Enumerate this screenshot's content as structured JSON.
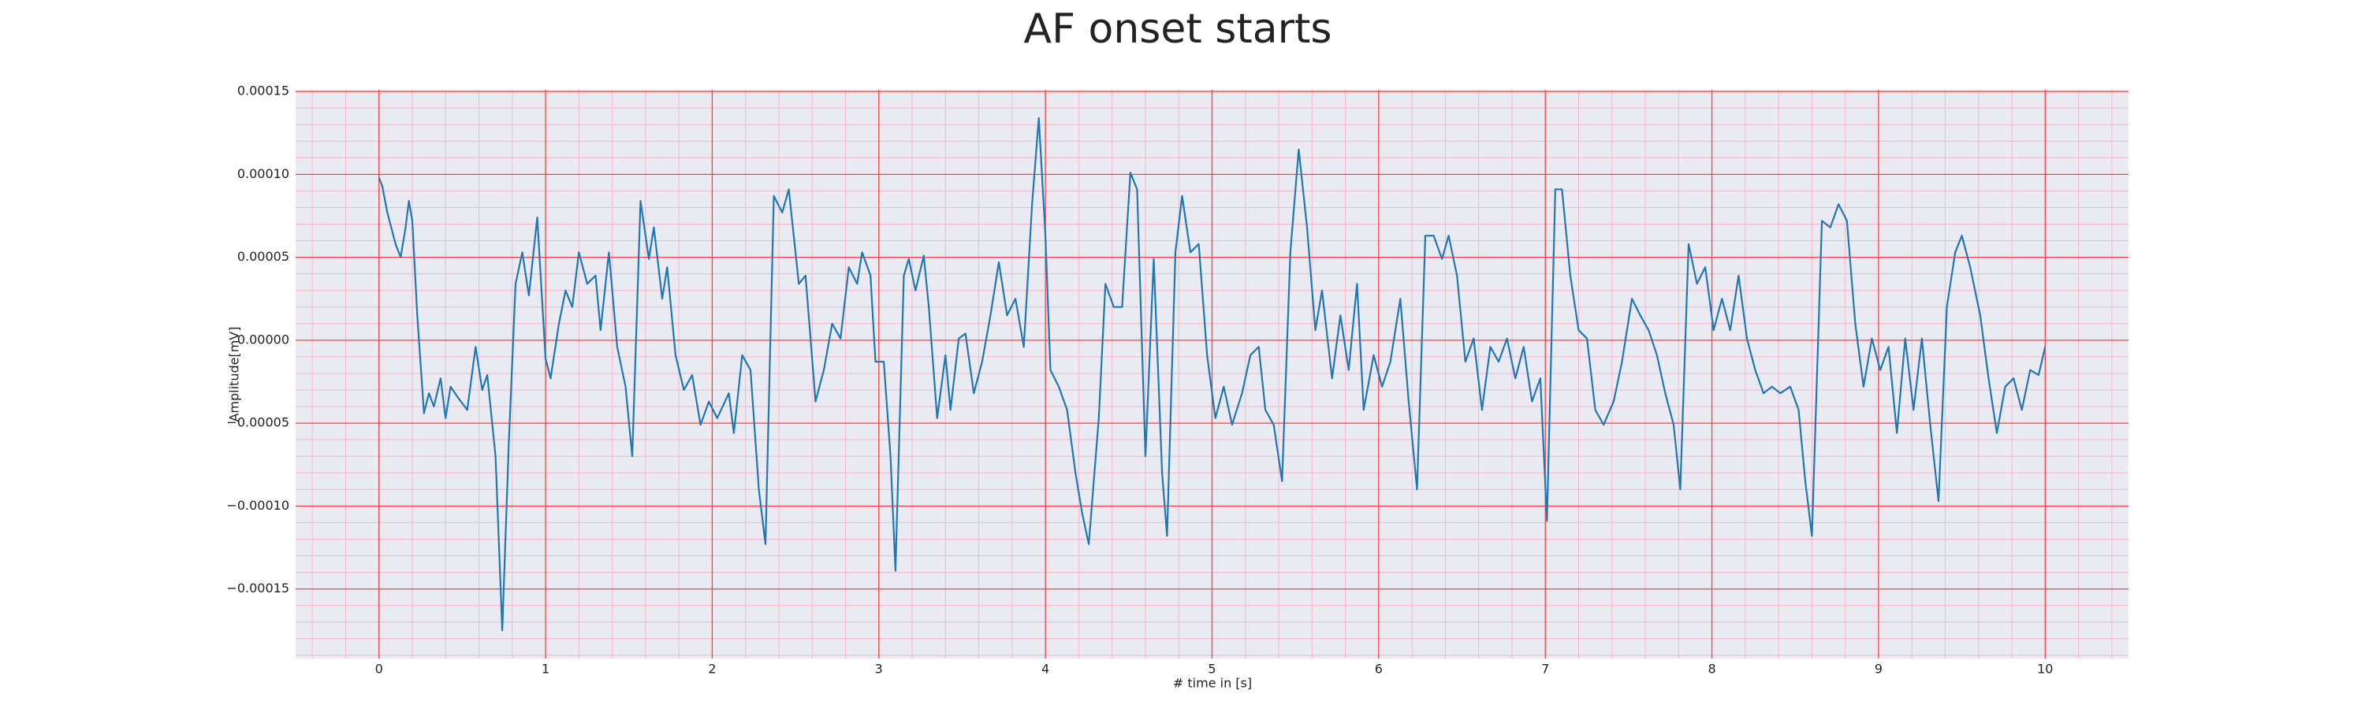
{
  "chart_data": {
    "type": "line",
    "title": "AF onset starts",
    "x_label": "# time in [s]",
    "y_label": "Amplitude[mV]",
    "x": [
      0,
      0.02,
      0.05,
      0.1,
      0.13,
      0.16,
      0.18,
      0.2,
      0.23,
      0.27,
      0.3,
      0.33,
      0.37,
      0.4,
      0.43,
      0.47,
      0.53,
      0.58,
      0.62,
      0.65,
      0.7,
      0.74,
      0.78,
      0.82,
      0.86,
      0.9,
      0.95,
      1.0,
      1.03,
      1.08,
      1.12,
      1.16,
      1.2,
      1.25,
      1.3,
      1.33,
      1.38,
      1.43,
      1.48,
      1.52,
      1.57,
      1.62,
      1.65,
      1.7,
      1.73,
      1.78,
      1.83,
      1.88,
      1.93,
      1.98,
      2.03,
      2.1,
      2.13,
      2.18,
      2.23,
      2.28,
      2.32,
      2.37,
      2.42,
      2.46,
      2.52,
      2.56,
      2.62,
      2.67,
      2.72,
      2.77,
      2.82,
      2.87,
      2.9,
      2.95,
      2.98,
      3.03,
      3.07,
      3.1,
      3.15,
      3.18,
      3.22,
      3.27,
      3.3,
      3.35,
      3.4,
      3.43,
      3.48,
      3.52,
      3.57,
      3.62,
      3.67,
      3.72,
      3.77,
      3.82,
      3.87,
      3.92,
      3.96,
      4.0,
      4.03,
      4.08,
      4.13,
      4.18,
      4.22,
      4.26,
      4.32,
      4.36,
      4.41,
      4.46,
      4.51,
      4.55,
      4.6,
      4.65,
      4.7,
      4.73,
      4.78,
      4.82,
      4.87,
      4.92,
      4.97,
      5.02,
      5.07,
      5.12,
      5.18,
      5.23,
      5.28,
      5.32,
      5.37,
      5.42,
      5.47,
      5.52,
      5.57,
      5.62,
      5.66,
      5.72,
      5.77,
      5.82,
      5.87,
      5.91,
      5.97,
      6.02,
      6.07,
      6.13,
      6.18,
      6.23,
      6.28,
      6.33,
      6.38,
      6.42,
      6.47,
      6.52,
      6.57,
      6.62,
      6.67,
      6.72,
      6.77,
      6.82,
      6.87,
      6.92,
      6.97,
      7.01,
      7.06,
      7.1,
      7.15,
      7.2,
      7.25,
      7.3,
      7.35,
      7.41,
      7.46,
      7.52,
      7.57,
      7.62,
      7.67,
      7.72,
      7.77,
      7.81,
      7.86,
      7.91,
      7.96,
      8.01,
      8.06,
      8.11,
      8.16,
      8.21,
      8.26,
      8.31,
      8.36,
      8.41,
      8.47,
      8.52,
      8.56,
      8.6,
      8.66,
      8.71,
      8.76,
      8.81,
      8.86,
      8.91,
      8.96,
      9.01,
      9.06,
      9.11,
      9.16,
      9.21,
      9.26,
      9.31,
      9.36,
      9.41,
      9.46,
      9.5,
      9.55,
      9.61,
      9.66,
      9.71,
      9.76,
      9.81,
      9.86,
      9.91,
      9.96,
      10.0
    ],
    "series": [
      {
        "name": "AF onset",
        "color": "#1f77b4",
        "values": [
          9.8e-05,
          9.3e-05,
          7.7e-05,
          5.8e-05,
          5e-05,
          6.8e-05,
          8.4e-05,
          7.2e-05,
          1.5e-05,
          -4.4e-05,
          -3.2e-05,
          -4e-05,
          -2.3e-05,
          -4.7e-05,
          -2.8e-05,
          -3.4e-05,
          -4.2e-05,
          -4e-06,
          -3e-05,
          -2.1e-05,
          -7e-05,
          -0.000175,
          -6.1e-05,
          3.4e-05,
          5.3e-05,
          2.7e-05,
          7.4e-05,
          -1.1e-05,
          -2.3e-05,
          1e-05,
          3e-05,
          2e-05,
          5.3e-05,
          3.4e-05,
          3.9e-05,
          6e-06,
          5.3e-05,
          -4e-06,
          -2.8e-05,
          -7e-05,
          8.4e-05,
          4.9e-05,
          6.8e-05,
          2.5e-05,
          4.4e-05,
          -9e-06,
          -3e-05,
          -2.1e-05,
          -5.1e-05,
          -3.7e-05,
          -4.7e-05,
          -3.2e-05,
          -5.6e-05,
          -9e-06,
          -1.8e-05,
          -9e-05,
          -0.000123,
          8.7e-05,
          7.7e-05,
          9.1e-05,
          3.4e-05,
          3.9e-05,
          -3.7e-05,
          -1.8e-05,
          1e-05,
          1e-06,
          4.4e-05,
          3.4e-05,
          5.3e-05,
          3.9e-05,
          -1.3e-05,
          -1.3e-05,
          -7e-05,
          -0.000139,
          3.9e-05,
          4.9e-05,
          3e-05,
          5.1e-05,
          2e-05,
          -4.7e-05,
          -9e-06,
          -4.2e-05,
          1e-06,
          4e-06,
          -3.2e-05,
          -1.3e-05,
          1.5e-05,
          4.7e-05,
          1.5e-05,
          2.5e-05,
          -4e-06,
          8.2e-05,
          0.000134,
          6.3e-05,
          -1.8e-05,
          -2.8e-05,
          -4.2e-05,
          -8e-05,
          -0.000104,
          -0.000123,
          -4.7e-05,
          3.4e-05,
          2e-05,
          2e-05,
          0.000101,
          9.1e-05,
          -7e-05,
          4.9e-05,
          -8e-05,
          -0.000118,
          5.3e-05,
          8.7e-05,
          5.3e-05,
          5.8e-05,
          -9e-06,
          -4.7e-05,
          -2.8e-05,
          -5.1e-05,
          -3.2e-05,
          -9e-06,
          -4e-06,
          -4.2e-05,
          -5.1e-05,
          -8.5e-05,
          5.3e-05,
          0.000115,
          6.8e-05,
          6e-06,
          3e-05,
          -2.3e-05,
          1.5e-05,
          -1.8e-05,
          3.4e-05,
          -4.2e-05,
          -9e-06,
          -2.8e-05,
          -1.3e-05,
          2.5e-05,
          -3.7e-05,
          -9e-05,
          6.3e-05,
          6.3e-05,
          4.9e-05,
          6.3e-05,
          3.9e-05,
          -1.3e-05,
          1e-06,
          -4.2e-05,
          -4e-06,
          -1.3e-05,
          1e-06,
          -2.3e-05,
          -4e-06,
          -3.7e-05,
          -2.3e-05,
          -0.000109,
          9.1e-05,
          9.1e-05,
          3.9e-05,
          6e-06,
          1e-06,
          -4.2e-05,
          -5.1e-05,
          -3.7e-05,
          -1.3e-05,
          2.5e-05,
          1.5e-05,
          6e-06,
          -9e-06,
          -3.2e-05,
          -5.1e-05,
          -9e-05,
          5.8e-05,
          3.4e-05,
          4.4e-05,
          6e-06,
          2.5e-05,
          6e-06,
          3.9e-05,
          1e-06,
          -1.8e-05,
          -3.2e-05,
          -2.8e-05,
          -3.2e-05,
          -2.8e-05,
          -4.2e-05,
          -8.5e-05,
          -0.000118,
          7.2e-05,
          6.8e-05,
          8.2e-05,
          7.2e-05,
          1e-05,
          -2.8e-05,
          1e-06,
          -1.8e-05,
          -4e-06,
          -5.6e-05,
          1e-06,
          -4.2e-05,
          1e-06,
          -5.1e-05,
          -9.7e-05,
          2e-05,
          5.3e-05,
          6.3e-05,
          4.4e-05,
          1.5e-05,
          -2.3e-05,
          -5.6e-05,
          -2.8e-05,
          -2.3e-05,
          -4.2e-05,
          -1.8e-05,
          -2.1e-05,
          -4e-06
        ]
      }
    ],
    "xlim": [
      -0.5,
      10.5
    ],
    "xticks": [
      0,
      1,
      2,
      3,
      4,
      5,
      6,
      7,
      8,
      9,
      10
    ],
    "ylim": [
      -0.000192,
      0.000151
    ],
    "yticks": [
      {
        "value": -0.00015,
        "label": "−0.00015"
      },
      {
        "value": -0.0001,
        "label": "−0.00010"
      },
      {
        "value": -5e-05,
        "label": "−0.00005"
      },
      {
        "value": 0,
        "label": "0.00000"
      },
      {
        "value": 5e-05,
        "label": "0.00005"
      },
      {
        "value": 0.0001,
        "label": "0.00010"
      },
      {
        "value": 0.00015,
        "label": "0.00015"
      }
    ],
    "grid": true,
    "minor_grid": true,
    "grid_color": "#ff4040",
    "minor_grid_color": "#f4b8c8",
    "background": "#eaeaf2"
  }
}
